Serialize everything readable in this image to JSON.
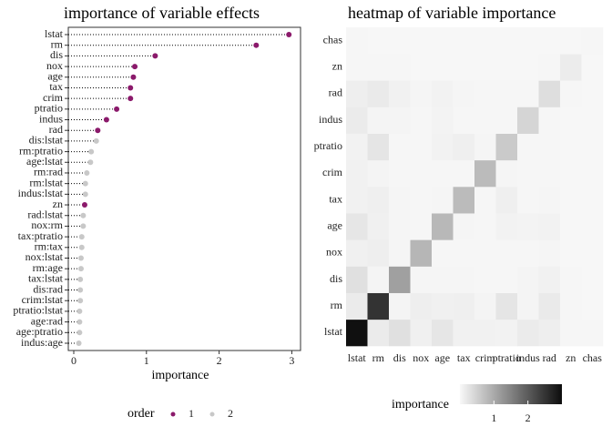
{
  "chart_data": [
    {
      "type": "dot",
      "title": "importance of variable effects",
      "xlabel": "importance",
      "legend_title": "order",
      "categories": [
        "lstat",
        "rm",
        "dis",
        "nox",
        "age",
        "tax",
        "crim",
        "ptratio",
        "indus",
        "rad",
        "dis:lstat",
        "rm:ptratio",
        "age:lstat",
        "rm:rad",
        "rm:lstat",
        "indus:lstat",
        "zn",
        "rad:lstat",
        "nox:rm",
        "tax:ptratio",
        "rm:tax",
        "nox:lstat",
        "rm:age",
        "tax:lstat",
        "dis:rad",
        "crim:lstat",
        "ptratio:lstat",
        "age:rad",
        "age:ptratio",
        "indus:age"
      ],
      "series": [
        {
          "name": "1",
          "color": "#8b1a6b",
          "values": [
            2.96,
            2.51,
            1.12,
            0.84,
            0.82,
            0.78,
            0.78,
            0.59,
            0.45,
            0.33,
            null,
            null,
            null,
            null,
            null,
            null,
            0.15,
            null,
            null,
            null,
            null,
            null,
            null,
            null,
            null,
            null,
            null,
            null,
            null,
            null
          ]
        },
        {
          "name": "2",
          "color": "#c8c8c8",
          "values": [
            null,
            null,
            null,
            null,
            null,
            null,
            null,
            null,
            null,
            null,
            0.31,
            0.24,
            0.23,
            0.18,
            0.16,
            0.16,
            null,
            0.13,
            0.13,
            0.11,
            0.11,
            0.1,
            0.1,
            0.09,
            0.09,
            0.09,
            0.08,
            0.08,
            0.08,
            0.07
          ]
        }
      ],
      "xlim": [
        -0.075,
        3.12
      ],
      "xticks": [
        0,
        1,
        2,
        3
      ]
    },
    {
      "type": "heatmap",
      "title": "heatmap of variable importance",
      "legend_title": "importance",
      "x": [
        "lstat",
        "rm",
        "dis",
        "nox",
        "age",
        "tax",
        "crim",
        "ptratio",
        "indus",
        "rad",
        "zn",
        "chas"
      ],
      "y": [
        "lstat",
        "rm",
        "dis",
        "nox",
        "age",
        "tax",
        "crim",
        "ptratio",
        "indus",
        "rad",
        "zn",
        "chas"
      ],
      "z": [
        [
          2.96,
          0.16,
          0.31,
          0.1,
          0.23,
          0.09,
          0.09,
          0.08,
          0.16,
          0.13,
          0.02,
          0.02
        ],
        [
          0.16,
          2.51,
          0.05,
          0.13,
          0.1,
          0.11,
          0.05,
          0.24,
          0.05,
          0.18,
          0.02,
          0.01
        ],
        [
          0.31,
          0.05,
          1.12,
          0.04,
          0.04,
          0.04,
          0.03,
          0.03,
          0.05,
          0.09,
          0.02,
          0.01
        ],
        [
          0.1,
          0.13,
          0.04,
          0.84,
          0.03,
          0.03,
          0.03,
          0.03,
          0.02,
          0.04,
          0.01,
          0.01
        ],
        [
          0.23,
          0.1,
          0.04,
          0.03,
          0.82,
          0.04,
          0.03,
          0.08,
          0.07,
          0.08,
          0.01,
          0.01
        ],
        [
          0.09,
          0.11,
          0.04,
          0.03,
          0.04,
          0.78,
          0.03,
          0.11,
          0.03,
          0.04,
          0.01,
          0.01
        ],
        [
          0.09,
          0.05,
          0.03,
          0.03,
          0.03,
          0.03,
          0.78,
          0.04,
          0.03,
          0.03,
          0.01,
          0.01
        ],
        [
          0.08,
          0.24,
          0.03,
          0.03,
          0.08,
          0.11,
          0.04,
          0.59,
          0.03,
          0.03,
          0.01,
          0.01
        ],
        [
          0.16,
          0.05,
          0.05,
          0.02,
          0.07,
          0.03,
          0.03,
          0.03,
          0.45,
          0.03,
          0.01,
          0.01
        ],
        [
          0.13,
          0.18,
          0.09,
          0.04,
          0.08,
          0.04,
          0.03,
          0.03,
          0.03,
          0.33,
          0.02,
          0.01
        ],
        [
          0.02,
          0.02,
          0.02,
          0.01,
          0.01,
          0.01,
          0.01,
          0.01,
          0.01,
          0.02,
          0.15,
          0.01
        ],
        [
          0.02,
          0.01,
          0.01,
          0.01,
          0.01,
          0.01,
          0.01,
          0.01,
          0.01,
          0.01,
          0.01,
          0.02
        ]
      ],
      "zlim": [
        0,
        3
      ],
      "zticks": [
        1,
        2
      ],
      "colors": [
        "#f8f8f8",
        "#0d0d0d"
      ]
    }
  ]
}
